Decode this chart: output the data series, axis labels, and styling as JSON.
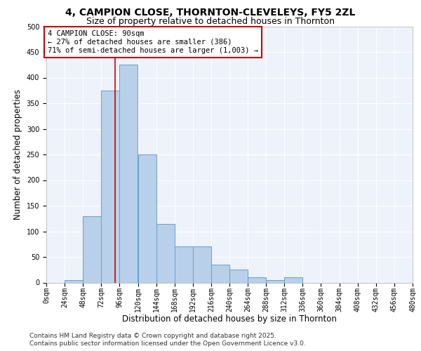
{
  "title_line1": "4, CAMPION CLOSE, THORNTON-CLEVELEYS, FY5 2ZL",
  "title_line2": "Size of property relative to detached houses in Thornton",
  "xlabel": "Distribution of detached houses by size in Thornton",
  "ylabel": "Number of detached properties",
  "bin_edges": [
    0,
    24,
    48,
    72,
    96,
    120,
    144,
    168,
    192,
    216,
    240,
    264,
    288,
    312,
    336,
    360,
    384,
    408,
    432,
    456,
    480
  ],
  "bar_heights": [
    0,
    5,
    130,
    375,
    425,
    250,
    115,
    70,
    70,
    35,
    25,
    10,
    5,
    10,
    0,
    0,
    0,
    0,
    0,
    0
  ],
  "bar_color": "#b8d0ea",
  "bar_edge_color": "#6aa0cc",
  "vline_x": 90,
  "vline_color": "#cc0000",
  "annotation_line1": "4 CAMPION CLOSE: 90sqm",
  "annotation_line2": "← 27% of detached houses are smaller (386)",
  "annotation_line3": "71% of semi-detached houses are larger (1,003) →",
  "annotation_box_color": "#cc0000",
  "ylim": [
    0,
    500
  ],
  "yticks": [
    0,
    50,
    100,
    150,
    200,
    250,
    300,
    350,
    400,
    450,
    500
  ],
  "background_color": "#eef2fb",
  "grid_color": "#ffffff",
  "footer_line1": "Contains HM Land Registry data © Crown copyright and database right 2025.",
  "footer_line2": "Contains public sector information licensed under the Open Government Licence v3.0.",
  "title_fontsize": 10,
  "subtitle_fontsize": 9,
  "axis_label_fontsize": 8.5,
  "tick_fontsize": 7,
  "annotation_fontsize": 7.5,
  "footer_fontsize": 6.5
}
